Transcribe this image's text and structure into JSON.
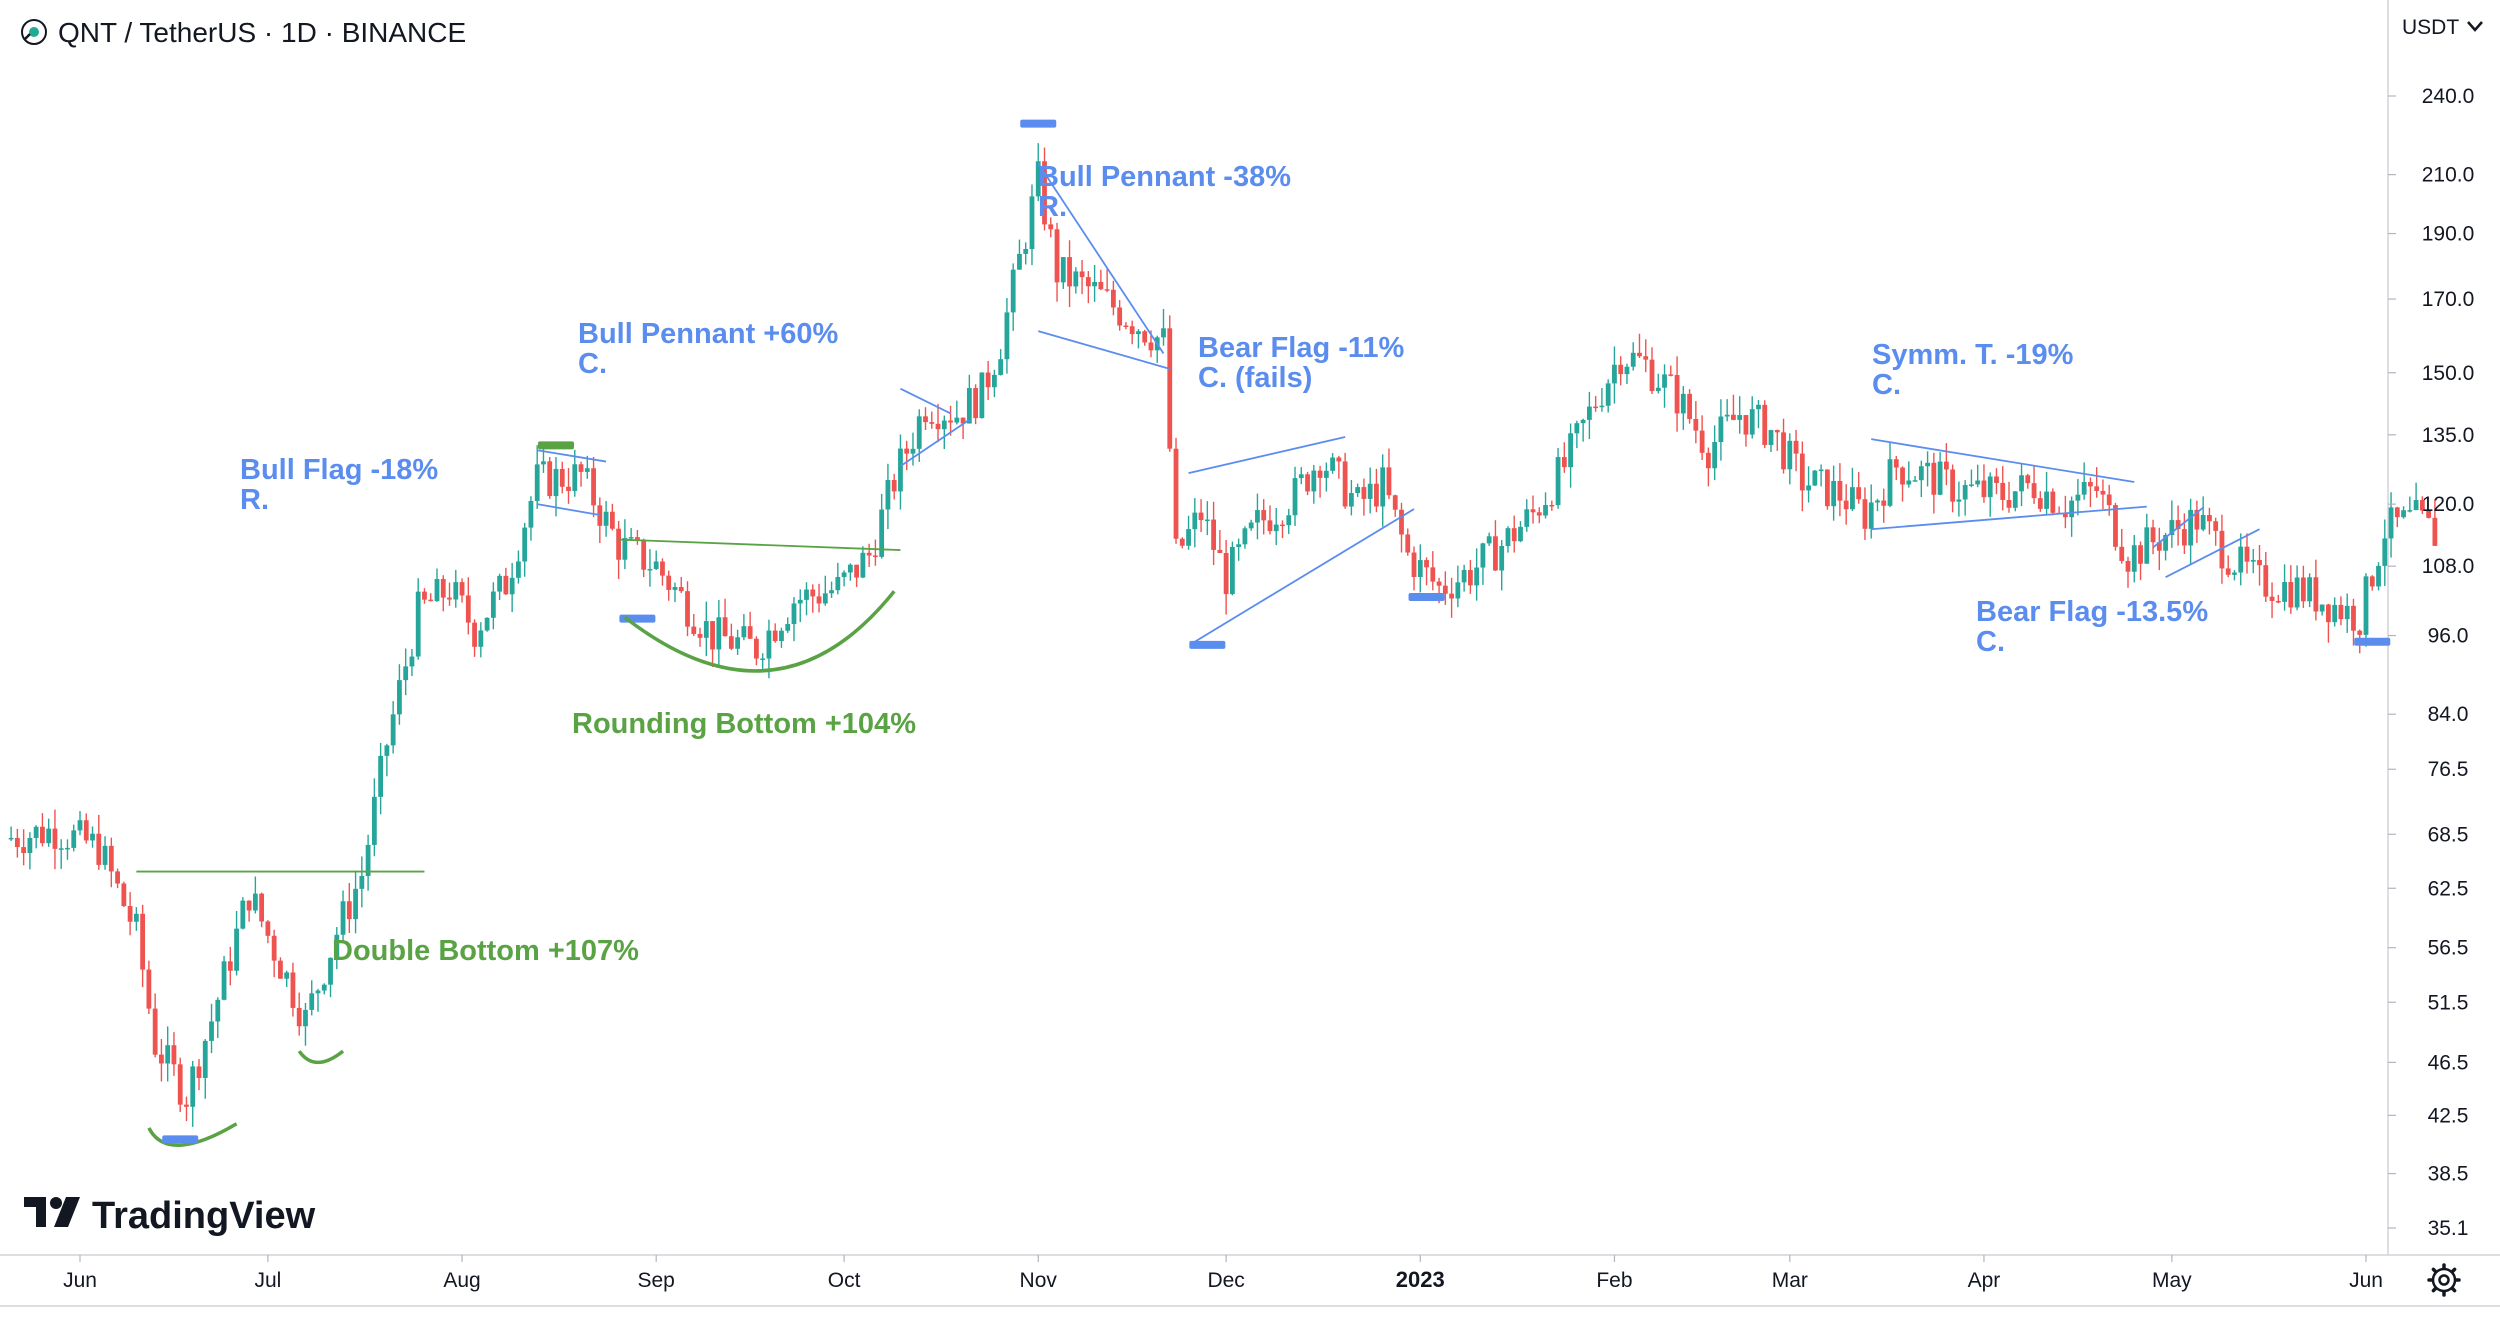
{
  "window": {
    "symbol_title": "QNT / TetherUS · 1D · BINANCE",
    "currency_label": "USDT",
    "currency_dropdown_icon": "chevron-down-icon",
    "settings_icon": "gear-icon",
    "brand": "TradingView",
    "brand_logo_icon": "tradingview-logo-icon"
  },
  "colors": {
    "up": "#26a69a",
    "down": "#ef5350",
    "annotation_blue": "#5b8def",
    "annotation_green": "#5aa344",
    "grid": "#e0e3eb",
    "text": "#131722"
  },
  "chart_data": {
    "type": "candlestick",
    "title": "QNT / TetherUS · 1D · BINANCE",
    "y_scale": "log",
    "ylim": [
      33,
      265
    ],
    "y_unit": "USDT",
    "y_ticks": [
      "240.0",
      "210.0",
      "190.0",
      "170.0",
      "150.0",
      "135.0",
      "120.0",
      "108.0",
      "96.0",
      "84.0",
      "76.5",
      "68.5",
      "62.5",
      "56.5",
      "51.5",
      "46.5",
      "42.5",
      "38.5",
      "35.1"
    ],
    "x_ticks": [
      "Jun",
      "Jul",
      "Aug",
      "Sep",
      "Oct",
      "Nov",
      "Dec",
      "2023",
      "Feb",
      "Mar",
      "Apr",
      "May",
      "Jun"
    ],
    "bold_x_ticks": [
      "2023"
    ],
    "grid": false,
    "price_path": [
      [
        "2022-05-20",
        68
      ],
      [
        "2022-05-28",
        69
      ],
      [
        "2022-06-04",
        67
      ],
      [
        "2022-06-10",
        58
      ],
      [
        "2022-06-13",
        48
      ],
      [
        "2022-06-18",
        44
      ],
      [
        "2022-06-22",
        50
      ],
      [
        "2022-06-28",
        62
      ],
      [
        "2022-07-03",
        55
      ],
      [
        "2022-07-07",
        50
      ],
      [
        "2022-07-12",
        58
      ],
      [
        "2022-07-16",
        64
      ],
      [
        "2022-07-20",
        80
      ],
      [
        "2022-07-25",
        100
      ],
      [
        "2022-07-30",
        104
      ],
      [
        "2022-08-03",
        97
      ],
      [
        "2022-08-08",
        105
      ],
      [
        "2022-08-13",
        125
      ],
      [
        "2022-08-20",
        126
      ],
      [
        "2022-08-26",
        112
      ],
      [
        "2022-09-01",
        108
      ],
      [
        "2022-09-06",
        101
      ],
      [
        "2022-09-10",
        96
      ],
      [
        "2022-09-17",
        94
      ],
      [
        "2022-09-23",
        102
      ],
      [
        "2022-09-30",
        104
      ],
      [
        "2022-10-05",
        110
      ],
      [
        "2022-10-09",
        125
      ],
      [
        "2022-10-14",
        142
      ],
      [
        "2022-10-19",
        140
      ],
      [
        "2022-10-23",
        145
      ],
      [
        "2022-10-26",
        158
      ],
      [
        "2022-10-30",
        190
      ],
      [
        "2022-11-01",
        208
      ],
      [
        "2022-11-04",
        178
      ],
      [
        "2022-11-10",
        172
      ],
      [
        "2022-11-16",
        164
      ],
      [
        "2022-11-21",
        158
      ],
      [
        "2022-11-23",
        110
      ],
      [
        "2022-11-27",
        118
      ],
      [
        "2022-12-01",
        106
      ],
      [
        "2022-12-06",
        116
      ],
      [
        "2022-12-12",
        122
      ],
      [
        "2022-12-16",
        130
      ],
      [
        "2022-12-22",
        120
      ],
      [
        "2022-12-26",
        124
      ],
      [
        "2022-12-30",
        110
      ],
      [
        "2023-01-04",
        104
      ],
      [
        "2023-01-09",
        107
      ],
      [
        "2023-01-14",
        112
      ],
      [
        "2023-01-19",
        118
      ],
      [
        "2023-01-24",
        128
      ],
      [
        "2023-01-29",
        143
      ],
      [
        "2023-02-02",
        155
      ],
      [
        "2023-02-06",
        152
      ],
      [
        "2023-02-11",
        144
      ],
      [
        "2023-02-16",
        132
      ],
      [
        "2023-02-21",
        140
      ],
      [
        "2023-02-26",
        136
      ],
      [
        "2023-03-03",
        125
      ],
      [
        "2023-03-09",
        122
      ],
      [
        "2023-03-13",
        118
      ],
      [
        "2023-03-18",
        128
      ],
      [
        "2023-03-23",
        126
      ],
      [
        "2023-03-28",
        123
      ],
      [
        "2023-04-04",
        122
      ],
      [
        "2023-04-09",
        124
      ],
      [
        "2023-04-14",
        120
      ],
      [
        "2023-04-19",
        123
      ],
      [
        "2023-04-24",
        110
      ],
      [
        "2023-04-30",
        114
      ],
      [
        "2023-05-05",
        117
      ],
      [
        "2023-05-10",
        110
      ],
      [
        "2023-05-15",
        105
      ],
      [
        "2023-05-21",
        104
      ],
      [
        "2023-05-27",
        101
      ],
      [
        "2023-05-31",
        99
      ],
      [
        "2023-06-04",
        115
      ],
      [
        "2023-06-09",
        117
      ],
      [
        "2023-06-12",
        114
      ]
    ],
    "annotations": [
      {
        "lines": [
          "Double Bottom +107%"
        ],
        "color": "green"
      },
      {
        "lines": [
          "Bull Flag -18%",
          "R."
        ],
        "color": "blue"
      },
      {
        "lines": [
          "Rounding Bottom +104%"
        ],
        "color": "green"
      },
      {
        "lines": [
          "Bull Pennant +60%",
          "C."
        ],
        "color": "blue"
      },
      {
        "lines": [
          "Bull Pennant -38%",
          "R."
        ],
        "color": "blue"
      },
      {
        "lines": [
          "Bear Flag -11%",
          "C. (fails)"
        ],
        "color": "blue"
      },
      {
        "lines": [
          "Symm. T. -19%",
          "C."
        ],
        "color": "blue"
      },
      {
        "lines": [
          "Bear Flag -13.5%",
          "C."
        ],
        "color": "blue"
      }
    ]
  }
}
